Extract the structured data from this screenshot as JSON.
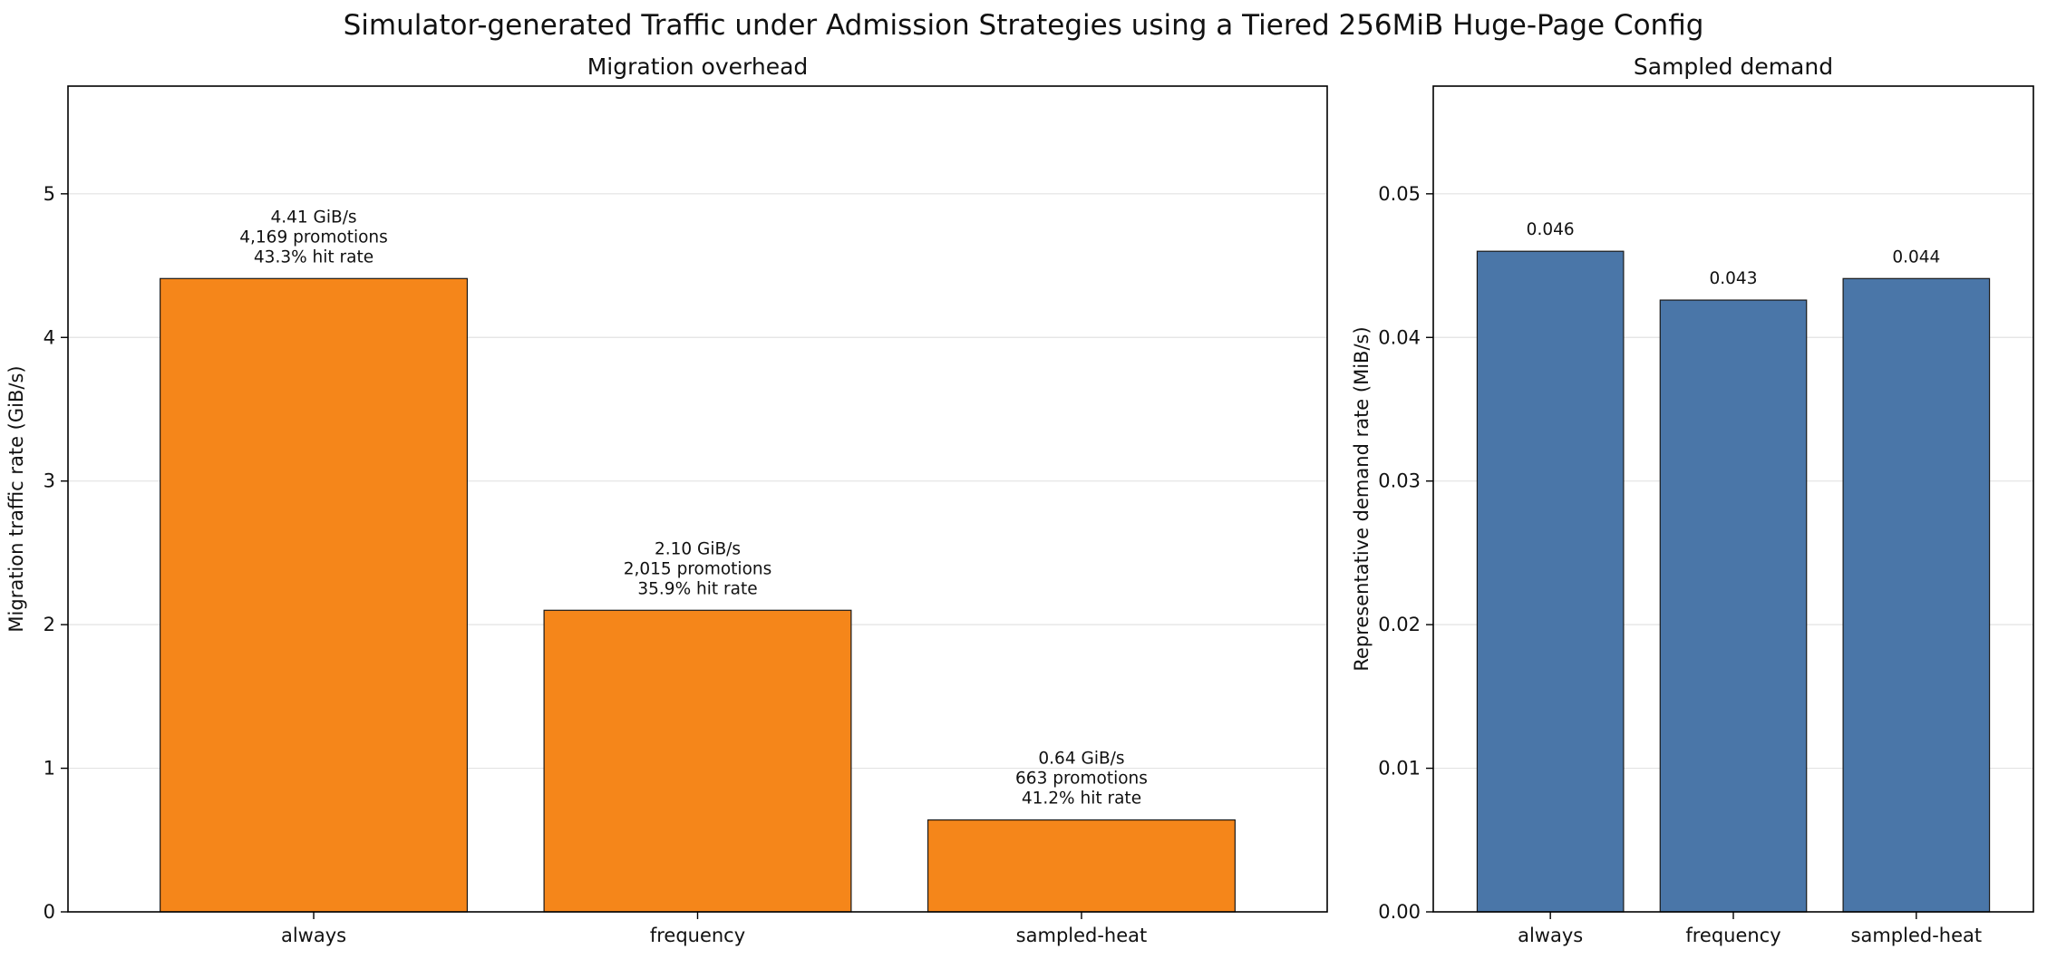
{
  "figure": {
    "title": "Simulator-generated Traffic under Admission Strategies using a Tiered 256MiB Huge-Page Config"
  },
  "chart_data": [
    {
      "type": "bar",
      "title": "Migration overhead",
      "xlabel": "",
      "ylabel": "Migration traffic rate (GiB/s)",
      "categories": [
        "always",
        "frequency",
        "sampled-heat"
      ],
      "values": [
        4.41,
        2.1,
        0.64
      ],
      "data_labels": [
        [
          "4.41 GiB/s",
          "4,169 promotions",
          "43.3% hit rate"
        ],
        [
          "2.10 GiB/s",
          "2,015 promotions",
          "35.9% hit rate"
        ],
        [
          "0.64 GiB/s",
          "663 promotions",
          "41.2% hit rate"
        ]
      ],
      "ylim": [
        0,
        5.75
      ],
      "yticks": [
        0,
        1,
        2,
        3,
        4,
        5
      ],
      "ytick_labels": [
        "0",
        "1",
        "2",
        "3",
        "4",
        "5"
      ],
      "grid": "horizontal",
      "bar_color": "#f5861a",
      "edge_color": "#1a1a1a"
    },
    {
      "type": "bar",
      "title": "Sampled demand",
      "xlabel": "",
      "ylabel": "Representative demand rate (MiB/s)",
      "categories": [
        "always",
        "frequency",
        "sampled-heat"
      ],
      "values": [
        0.046,
        0.0426,
        0.0441
      ],
      "data_labels": [
        [
          "0.046"
        ],
        [
          "0.043"
        ],
        [
          "0.044"
        ]
      ],
      "ylim": [
        0,
        0.0575
      ],
      "yticks": [
        0,
        0.01,
        0.02,
        0.03,
        0.04,
        0.05
      ],
      "ytick_labels": [
        "0.00",
        "0.01",
        "0.02",
        "0.03",
        "0.04",
        "0.05"
      ],
      "grid": "horizontal",
      "bar_color": "#4a76a8",
      "edge_color": "#1a1a1a"
    }
  ]
}
